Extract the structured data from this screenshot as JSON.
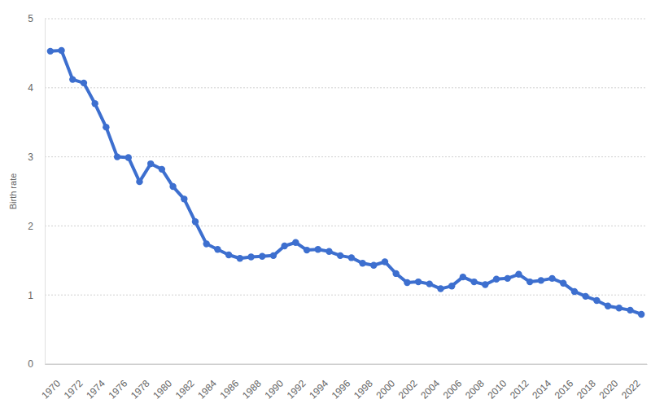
{
  "chart_data": {
    "type": "line",
    "y_label": "Birth rate",
    "x": [
      1970,
      1971,
      1972,
      1973,
      1974,
      1975,
      1976,
      1977,
      1978,
      1979,
      1980,
      1981,
      1982,
      1983,
      1984,
      1985,
      1986,
      1987,
      1988,
      1989,
      1990,
      1991,
      1992,
      1993,
      1994,
      1995,
      1996,
      1997,
      1998,
      1999,
      2000,
      2001,
      2002,
      2003,
      2004,
      2005,
      2006,
      2007,
      2008,
      2009,
      2010,
      2011,
      2012,
      2013,
      2014,
      2015,
      2016,
      2017,
      2018,
      2019,
      2020,
      2021,
      2022,
      2023
    ],
    "values": [
      4.53,
      4.54,
      4.12,
      4.07,
      3.77,
      3.43,
      3.0,
      2.99,
      2.64,
      2.9,
      2.82,
      2.57,
      2.39,
      2.06,
      1.74,
      1.66,
      1.58,
      1.53,
      1.55,
      1.56,
      1.57,
      1.71,
      1.76,
      1.65,
      1.66,
      1.63,
      1.57,
      1.54,
      1.46,
      1.43,
      1.48,
      1.31,
      1.18,
      1.19,
      1.16,
      1.09,
      1.13,
      1.26,
      1.19,
      1.15,
      1.23,
      1.24,
      1.3,
      1.19,
      1.21,
      1.24,
      1.17,
      1.05,
      0.98,
      0.92,
      0.84,
      0.81,
      0.78,
      0.72
    ],
    "color": "#3d6fcf",
    "marker": "circle",
    "line_style": "solid",
    "grid": true,
    "xlim": [
      1969.5,
      2023.5
    ],
    "xticks": [
      1970,
      1972,
      1974,
      1976,
      1978,
      1980,
      1982,
      1984,
      1986,
      1988,
      1990,
      1992,
      1994,
      1996,
      1998,
      2000,
      2002,
      2004,
      2006,
      2008,
      2010,
      2012,
      2014,
      2016,
      2018,
      2020,
      2022
    ],
    "ylim": [
      0,
      5
    ],
    "yticks": [
      0,
      1,
      2,
      3,
      4,
      5
    ]
  }
}
